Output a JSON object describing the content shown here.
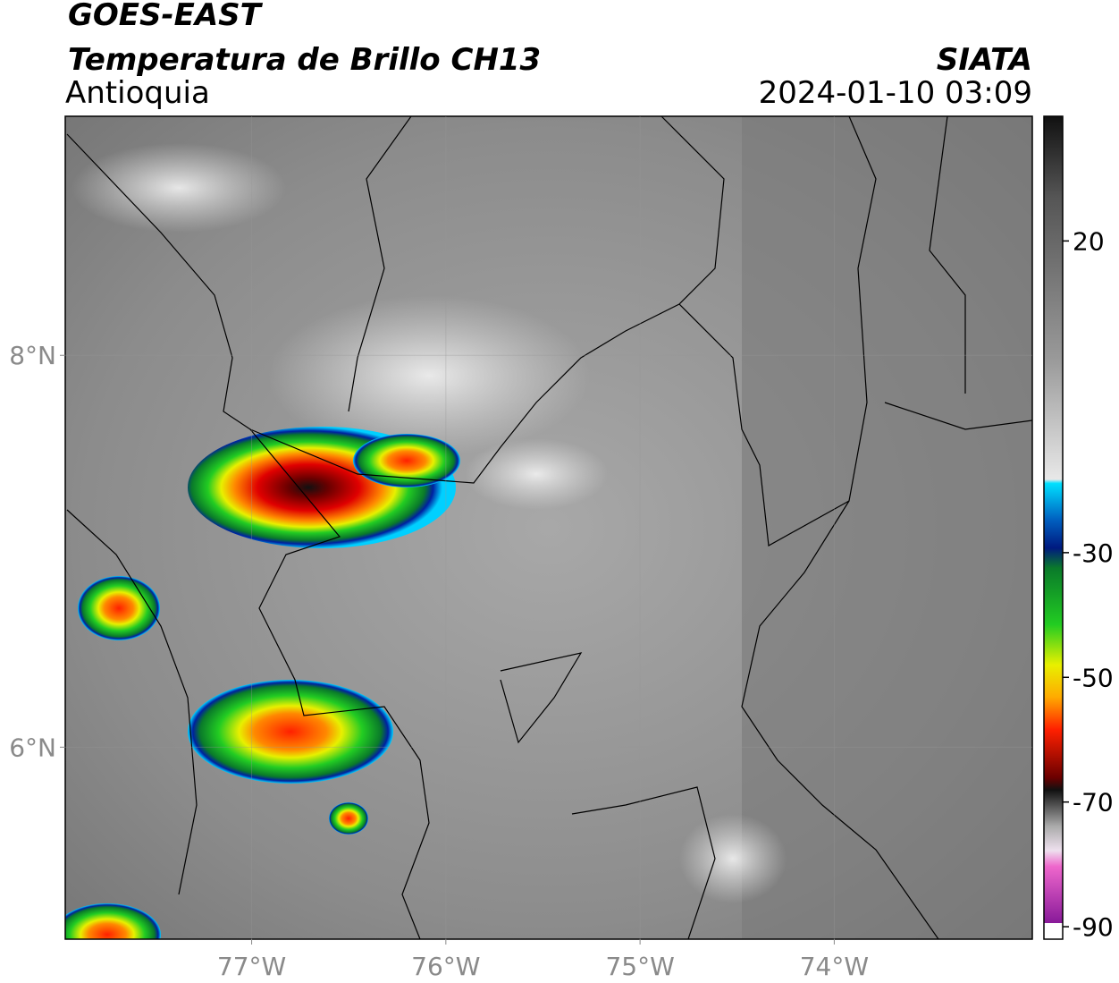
{
  "header": {
    "title": "GOES-EAST",
    "subtitle": "Temperatura de Brillo CH13",
    "region": "Antioquia",
    "source": "SIATA",
    "datetime": "2024-01-10 03:09"
  },
  "map": {
    "lon_range": [
      -77.96,
      -72.98
    ],
    "lat_range": [
      5.02,
      9.22
    ],
    "lon_ticks": [
      {
        "value": -77,
        "label": "77°W"
      },
      {
        "value": -76,
        "label": "76°W"
      },
      {
        "value": -75,
        "label": "75°W"
      },
      {
        "value": -74,
        "label": "74°W"
      }
    ],
    "lat_ticks": [
      {
        "value": 8,
        "label": "8°N"
      },
      {
        "value": 6,
        "label": "6°N"
      }
    ]
  },
  "colorbar": {
    "range": [
      -92,
      40
    ],
    "ticks": [
      20,
      -30,
      -50,
      -70,
      -90
    ]
  }
}
